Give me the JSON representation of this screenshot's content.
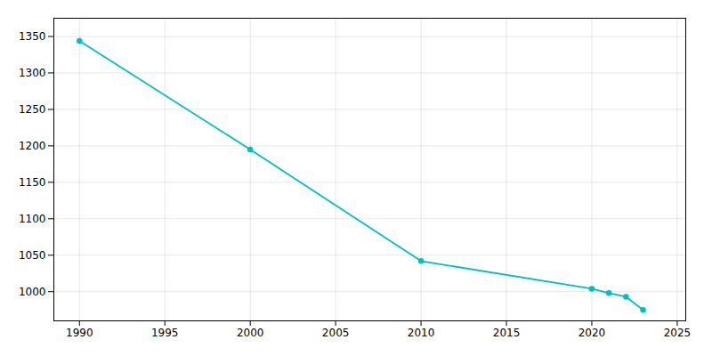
{
  "chart_data": {
    "type": "line",
    "x": [
      1990,
      2000,
      2010,
      2020,
      2021,
      2022,
      2023
    ],
    "values": [
      1344,
      1195,
      1042,
      1004,
      998,
      993,
      975
    ],
    "color": "#00BFBF",
    "marker": "circle",
    "xlim": [
      1988.5,
      2025.5
    ],
    "ylim": [
      960,
      1375
    ],
    "xticks": [
      1990,
      1995,
      2000,
      2005,
      2010,
      2015,
      2020,
      2025
    ],
    "yticks": [
      1000,
      1050,
      1100,
      1150,
      1200,
      1250,
      1300,
      1350
    ],
    "grid": true
  }
}
